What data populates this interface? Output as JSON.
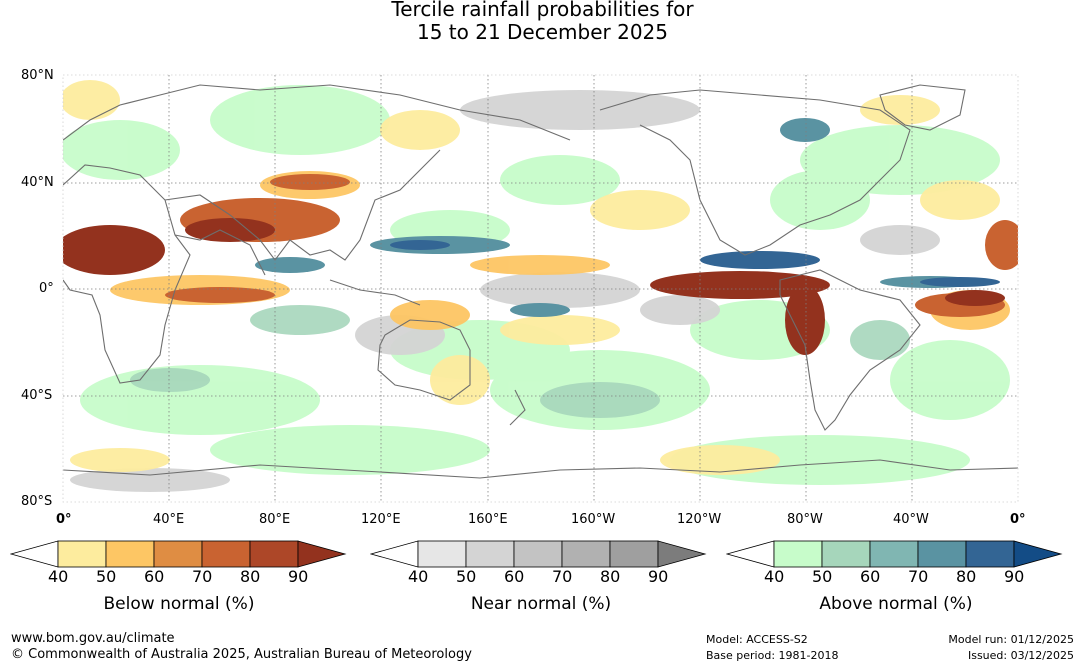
{
  "title": {
    "line1": "Tercile rainfall probabilities for",
    "line2": "15 to 21 December 2025"
  },
  "axes": {
    "lat_labels": [
      "80°N",
      "40°N",
      "0°",
      "40°S",
      "80°S"
    ],
    "lon_labels": [
      "0°",
      "40°E",
      "80°E",
      "120°E",
      "160°E",
      "160°W",
      "120°W",
      "80°W",
      "40°W",
      "0°"
    ]
  },
  "map_colors": {
    "ocean_bg": "#ffffff",
    "coast": "#6e6e6e",
    "grid": "#7f7f7f"
  },
  "colorbars": [
    {
      "name": "below",
      "title": "Below normal (%)",
      "ticks": [
        "40",
        "50",
        "60",
        "70",
        "80",
        "90"
      ],
      "colors": [
        "#ffffff",
        "#fdec9e",
        "#fdc664",
        "#df8d43",
        "#c96331",
        "#ad4728",
        "#93321e"
      ]
    },
    {
      "name": "near",
      "title": "Near normal (%)",
      "ticks": [
        "40",
        "50",
        "60",
        "70",
        "80",
        "90"
      ],
      "colors": [
        "#ffffff",
        "#e6e6e6",
        "#d4d4d4",
        "#c3c3c3",
        "#b1b1b1",
        "#9f9f9f",
        "#7c7c7c"
      ]
    },
    {
      "name": "above",
      "title": "Above normal (%)",
      "ticks": [
        "40",
        "50",
        "60",
        "70",
        "80",
        "90"
      ],
      "colors": [
        "#ffffff",
        "#c7fcca",
        "#a6d6bb",
        "#80b6b2",
        "#5a93a2",
        "#336594",
        "#134c86"
      ]
    }
  ],
  "footer": {
    "url": "www.bom.gov.au/climate",
    "copyright": "© Commonwealth of Australia 2025, Australian Bureau of Meteorology",
    "model": "Model: ACCESS-S2",
    "base_period": "Base period: 1981-2018",
    "model_run": "Model run: 01/12/2025",
    "issued": "Issued: 03/12/2025"
  }
}
